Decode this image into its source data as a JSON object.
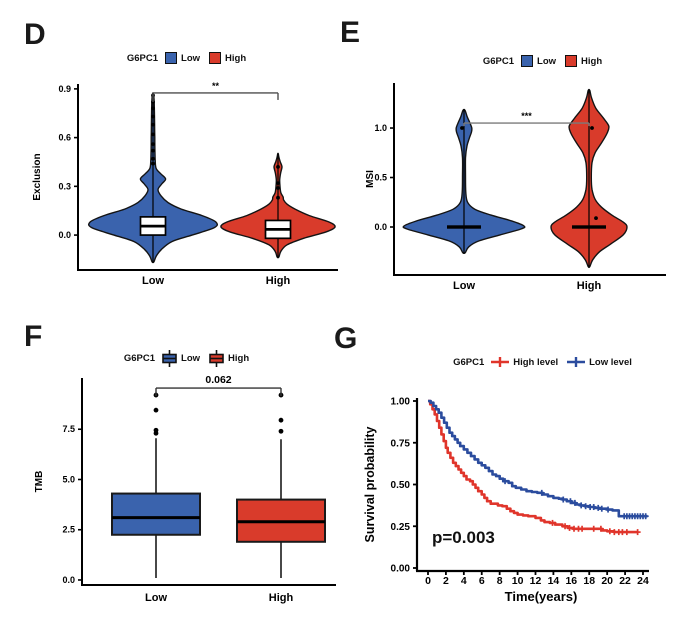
{
  "colors": {
    "low": "#3A63AD",
    "high": "#D93B2B",
    "km_high": "#E0352B",
    "km_low": "#2B4C9E",
    "axis": "#000000",
    "bracket_dark": "#4d4d4d",
    "bracket_gray": "#7b7b7b"
  },
  "panels": {
    "D": {
      "letter": "D",
      "legend": {
        "title": "G6PC1",
        "items": [
          "Low",
          "High"
        ]
      }
    },
    "E": {
      "letter": "E",
      "legend": {
        "title": "G6PC1",
        "items": [
          "Low",
          "High"
        ]
      }
    },
    "F": {
      "letter": "F",
      "legend": {
        "title": "G6PC1",
        "items": [
          "Low",
          "High"
        ]
      }
    },
    "G": {
      "letter": "G",
      "legend": {
        "title": "G6PC1",
        "items": [
          "High level",
          "Low level"
        ]
      }
    }
  },
  "chart_data": [
    {
      "id": "D",
      "type": "violin",
      "ylabel": "Exclusion",
      "ylim": [
        -0.215,
        0.93
      ],
      "yticks": [
        {
          "v": 0.0,
          "label": "0.0"
        },
        {
          "v": 0.3,
          "label": "0.3"
        },
        {
          "v": 0.6,
          "label": "0.6"
        },
        {
          "v": 0.9,
          "label": "0.9"
        }
      ],
      "categories": [
        "Low",
        "High"
      ],
      "series": [
        {
          "name": "Low",
          "color_key": "low",
          "profile": [
            [
              -0.165,
              0.015
            ],
            [
              -0.13,
              0.05
            ],
            [
              -0.09,
              0.13
            ],
            [
              -0.04,
              0.3
            ],
            [
              0.0,
              0.62
            ],
            [
              0.045,
              0.97
            ],
            [
              0.08,
              1.0
            ],
            [
              0.12,
              0.78
            ],
            [
              0.16,
              0.45
            ],
            [
              0.2,
              0.24
            ],
            [
              0.24,
              0.13
            ],
            [
              0.28,
              0.08
            ],
            [
              0.315,
              0.14
            ],
            [
              0.345,
              0.2
            ],
            [
              0.375,
              0.13
            ],
            [
              0.41,
              0.05
            ],
            [
              0.46,
              0.035
            ],
            [
              0.52,
              0.03
            ],
            [
              0.6,
              0.028
            ],
            [
              0.68,
              0.025
            ],
            [
              0.76,
              0.022
            ],
            [
              0.83,
              0.018
            ],
            [
              0.87,
              0.006
            ]
          ],
          "box": {
            "q1": 0.0,
            "median": 0.055,
            "q3": 0.112
          },
          "points": [
            [
              0,
              0.44
            ],
            [
              0,
              0.47
            ],
            [
              0,
              0.52
            ],
            [
              0,
              0.56
            ],
            [
              0,
              0.62
            ],
            [
              0,
              0.68
            ],
            [
              0,
              0.73
            ],
            [
              0,
              0.78
            ],
            [
              0,
              0.82
            ],
            [
              0,
              0.86
            ]
          ]
        },
        {
          "name": "High",
          "color_key": "high",
          "profile": [
            [
              -0.135,
              0.015
            ],
            [
              -0.1,
              0.05
            ],
            [
              -0.06,
              0.16
            ],
            [
              -0.02,
              0.45
            ],
            [
              0.02,
              0.85
            ],
            [
              0.05,
              1.0
            ],
            [
              0.08,
              0.9
            ],
            [
              0.12,
              0.55
            ],
            [
              0.16,
              0.3
            ],
            [
              0.19,
              0.16
            ],
            [
              0.215,
              0.1
            ],
            [
              0.235,
              0.09
            ],
            [
              0.26,
              0.05
            ],
            [
              0.3,
              0.035
            ],
            [
              0.34,
              0.03
            ],
            [
              0.38,
              0.045
            ],
            [
              0.42,
              0.07
            ],
            [
              0.45,
              0.04
            ],
            [
              0.48,
              0.015
            ],
            [
              0.5,
              0.005
            ]
          ],
          "box": {
            "q1": -0.02,
            "median": 0.035,
            "q3": 0.09
          },
          "points": [
            [
              0,
              0.23
            ],
            [
              0,
              0.29
            ],
            [
              0,
              0.32
            ],
            [
              0,
              0.42
            ]
          ]
        }
      ],
      "annotation": {
        "label": "**",
        "y": 0.875
      }
    },
    {
      "id": "E",
      "type": "violin",
      "ylabel": "MSI",
      "ylim": [
        -0.485,
        1.455
      ],
      "yticks": [
        {
          "v": 0.0,
          "label": "0.0"
        },
        {
          "v": 0.5,
          "label": "0.5"
        },
        {
          "v": 1.0,
          "label": "1.0"
        }
      ],
      "categories": [
        "Low",
        "High"
      ],
      "series": [
        {
          "name": "Low",
          "color_key": "low",
          "profile": [
            [
              -0.26,
              0.02
            ],
            [
              -0.2,
              0.08
            ],
            [
              -0.14,
              0.25
            ],
            [
              -0.08,
              0.6
            ],
            [
              -0.02,
              0.95
            ],
            [
              0.01,
              1.0
            ],
            [
              0.06,
              0.8
            ],
            [
              0.12,
              0.45
            ],
            [
              0.18,
              0.18
            ],
            [
              0.25,
              0.06
            ],
            [
              0.35,
              0.03
            ],
            [
              0.5,
              0.025
            ],
            [
              0.7,
              0.025
            ],
            [
              0.82,
              0.05
            ],
            [
              0.9,
              0.09
            ],
            [
              0.96,
              0.125
            ],
            [
              1.0,
              0.13
            ],
            [
              1.05,
              0.1
            ],
            [
              1.12,
              0.05
            ],
            [
              1.18,
              0.015
            ]
          ],
          "median_bar": 0.0,
          "points": [
            [
              -2,
              1.0
            ]
          ]
        },
        {
          "name": "High",
          "color_key": "high",
          "profile": [
            [
              -0.4,
              0.02
            ],
            [
              -0.33,
              0.1
            ],
            [
              -0.25,
              0.28
            ],
            [
              -0.17,
              0.58
            ],
            [
              -0.08,
              0.9
            ],
            [
              0.0,
              1.0
            ],
            [
              0.05,
              0.9
            ],
            [
              0.12,
              0.6
            ],
            [
              0.2,
              0.33
            ],
            [
              0.28,
              0.16
            ],
            [
              0.38,
              0.08
            ],
            [
              0.5,
              0.06
            ],
            [
              0.65,
              0.08
            ],
            [
              0.75,
              0.16
            ],
            [
              0.85,
              0.33
            ],
            [
              0.95,
              0.48
            ],
            [
              1.02,
              0.52
            ],
            [
              1.1,
              0.38
            ],
            [
              1.2,
              0.18
            ],
            [
              1.3,
              0.07
            ],
            [
              1.38,
              0.02
            ]
          ],
          "median_bar": 0.0,
          "points": [
            [
              3,
              1.0
            ],
            [
              7,
              0.09
            ]
          ]
        }
      ],
      "annotation": {
        "label": "***",
        "y": 1.05
      }
    },
    {
      "id": "F",
      "type": "box",
      "ylabel": "TMB",
      "ylim": [
        -0.25,
        10.05
      ],
      "yticks": [
        {
          "v": 0.0,
          "label": "0.0"
        },
        {
          "v": 2.5,
          "label": "2.5"
        },
        {
          "v": 5.0,
          "label": "5.0"
        },
        {
          "v": 7.5,
          "label": "7.5"
        }
      ],
      "categories": [
        "Low",
        "High"
      ],
      "series": [
        {
          "name": "Low",
          "color_key": "low",
          "whisker_low": 0.1,
          "q1": 2.25,
          "median": 3.1,
          "q3": 4.3,
          "whisker_high": 7.05,
          "outliers": [
            7.3,
            7.45,
            8.45,
            9.2
          ]
        },
        {
          "name": "High",
          "color_key": "high",
          "whisker_low": 0.1,
          "q1": 1.9,
          "median": 2.9,
          "q3": 4.0,
          "whisker_high": 7.0,
          "outliers": [
            7.4,
            7.95,
            9.2
          ]
        }
      ],
      "annotation": {
        "label": "0.062",
        "y": 9.55
      }
    },
    {
      "id": "G",
      "type": "km",
      "xlabel": "Time(years)",
      "ylabel": "Survival probability",
      "pvalue": "p=0.003",
      "xlim": [
        0,
        24.6
      ],
      "ylim": [
        0,
        1
      ],
      "xticks": [
        {
          "v": 0,
          "label": "0"
        },
        {
          "v": 2,
          "label": "2"
        },
        {
          "v": 4,
          "label": "4"
        },
        {
          "v": 6,
          "label": "6"
        },
        {
          "v": 8,
          "label": "8"
        },
        {
          "v": 10,
          "label": "10"
        },
        {
          "v": 12,
          "label": "12"
        },
        {
          "v": 14,
          "label": "14"
        },
        {
          "v": 16,
          "label": "16"
        },
        {
          "v": 18,
          "label": "18"
        },
        {
          "v": 20,
          "label": "20"
        },
        {
          "v": 22,
          "label": "22"
        },
        {
          "v": 24,
          "label": "24"
        }
      ],
      "yticks": [
        {
          "v": 0.0,
          "label": "0.00"
        },
        {
          "v": 0.25,
          "label": "0.25"
        },
        {
          "v": 0.5,
          "label": "0.50"
        },
        {
          "v": 0.75,
          "label": "0.75"
        },
        {
          "v": 1.0,
          "label": "1.00"
        }
      ],
      "series": [
        {
          "name": "High level",
          "color_key": "km_high",
          "steps": [
            [
              0,
              1.0
            ],
            [
              0.25,
              0.98
            ],
            [
              0.5,
              0.95
            ],
            [
              0.75,
              0.92
            ],
            [
              1.0,
              0.88
            ],
            [
              1.25,
              0.84
            ],
            [
              1.5,
              0.8
            ],
            [
              1.75,
              0.76
            ],
            [
              2.0,
              0.72
            ],
            [
              2.2,
              0.69
            ],
            [
              2.5,
              0.66
            ],
            [
              2.8,
              0.63
            ],
            [
              3.1,
              0.61
            ],
            [
              3.4,
              0.59
            ],
            [
              3.7,
              0.57
            ],
            [
              4.0,
              0.55
            ],
            [
              4.3,
              0.53
            ],
            [
              4.7,
              0.52
            ],
            [
              5.0,
              0.5
            ],
            [
              5.3,
              0.48
            ],
            [
              5.6,
              0.46
            ],
            [
              6.0,
              0.44
            ],
            [
              6.3,
              0.42
            ],
            [
              6.6,
              0.4
            ],
            [
              7.0,
              0.385
            ],
            [
              7.8,
              0.375
            ],
            [
              8.3,
              0.37
            ],
            [
              8.8,
              0.355
            ],
            [
              9.2,
              0.34
            ],
            [
              9.6,
              0.33
            ],
            [
              10.0,
              0.32
            ],
            [
              10.6,
              0.315
            ],
            [
              11.2,
              0.31
            ],
            [
              12.0,
              0.3
            ],
            [
              12.6,
              0.285
            ],
            [
              13.0,
              0.275
            ],
            [
              13.6,
              0.27
            ],
            [
              14.2,
              0.26
            ],
            [
              15.0,
              0.25
            ],
            [
              15.6,
              0.24
            ],
            [
              16.2,
              0.235
            ],
            [
              18.8,
              0.235
            ],
            [
              19.4,
              0.225
            ],
            [
              20.0,
              0.22
            ],
            [
              20.8,
              0.215
            ],
            [
              23.5,
              0.215
            ]
          ],
          "censors": [
            13.9,
            15.3,
            15.8,
            16.3,
            16.8,
            17.2,
            18.5,
            19.3,
            20.3,
            20.8,
            21.3,
            21.7,
            22.2,
            23.4
          ]
        },
        {
          "name": "Low level",
          "color_key": "km_low",
          "steps": [
            [
              0,
              1.0
            ],
            [
              0.3,
              0.99
            ],
            [
              0.6,
              0.97
            ],
            [
              0.9,
              0.95
            ],
            [
              1.2,
              0.93
            ],
            [
              1.5,
              0.9
            ],
            [
              1.8,
              0.87
            ],
            [
              2.1,
              0.84
            ],
            [
              2.4,
              0.81
            ],
            [
              2.7,
              0.79
            ],
            [
              3.0,
              0.77
            ],
            [
              3.3,
              0.75
            ],
            [
              3.6,
              0.73
            ],
            [
              4.0,
              0.71
            ],
            [
              4.4,
              0.69
            ],
            [
              4.8,
              0.67
            ],
            [
              5.2,
              0.65
            ],
            [
              5.6,
              0.63
            ],
            [
              6.0,
              0.615
            ],
            [
              6.4,
              0.6
            ],
            [
              6.8,
              0.58
            ],
            [
              7.2,
              0.56
            ],
            [
              7.6,
              0.55
            ],
            [
              8.0,
              0.535
            ],
            [
              8.4,
              0.52
            ],
            [
              9.0,
              0.51
            ],
            [
              9.4,
              0.49
            ],
            [
              9.8,
              0.48
            ],
            [
              10.4,
              0.47
            ],
            [
              11.0,
              0.46
            ],
            [
              11.6,
              0.455
            ],
            [
              12.2,
              0.45
            ],
            [
              12.8,
              0.44
            ],
            [
              13.4,
              0.43
            ],
            [
              14.0,
              0.42
            ],
            [
              14.6,
              0.415
            ],
            [
              15.0,
              0.41
            ],
            [
              15.5,
              0.4
            ],
            [
              16.0,
              0.39
            ],
            [
              16.5,
              0.38
            ],
            [
              17.0,
              0.375
            ],
            [
              17.5,
              0.37
            ],
            [
              18.0,
              0.365
            ],
            [
              18.6,
              0.36
            ],
            [
              19.2,
              0.355
            ],
            [
              20.0,
              0.35
            ],
            [
              20.6,
              0.345
            ],
            [
              21.3,
              0.31
            ],
            [
              24.5,
              0.31
            ]
          ],
          "censors": [
            8.6,
            12.7,
            15.1,
            15.9,
            16.4,
            17.1,
            17.6,
            18.1,
            18.5,
            19.0,
            19.4,
            20.1,
            21.9,
            22.2,
            22.5,
            22.8,
            23.1,
            23.4,
            23.7,
            24.0,
            24.3
          ]
        }
      ]
    }
  ]
}
